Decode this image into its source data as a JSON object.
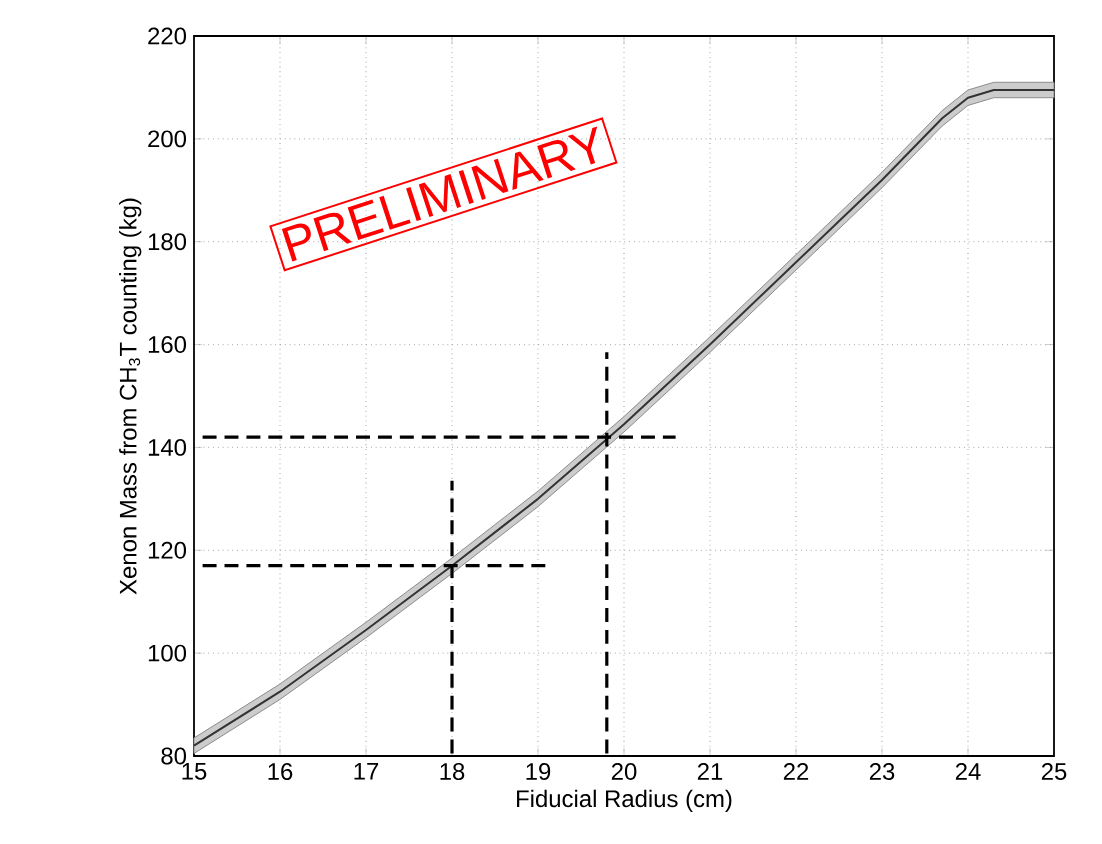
{
  "chart_data": {
    "type": "line",
    "xlabel": "Fiducial Radius (cm)",
    "ylabel": "Xenon Mass from CH$_{3}$T counting (kg)",
    "xlim": [
      15,
      25
    ],
    "ylim": [
      80,
      220
    ],
    "xticks": [
      15,
      16,
      17,
      18,
      19,
      20,
      21,
      22,
      23,
      24,
      25
    ],
    "yticks": [
      80,
      100,
      120,
      140,
      160,
      180,
      200,
      220
    ],
    "grid": true,
    "marker": "none",
    "annotations": [
      "PRELIMINARY"
    ],
    "series": [
      {
        "color": "#333333",
        "line_style": "solid",
        "x": [
          15,
          16,
          17,
          18,
          19,
          20,
          21,
          22,
          23,
          23.7,
          24,
          24.3,
          25
        ],
        "values": [
          82,
          92.5,
          104.5,
          117,
          130,
          144.5,
          160,
          176,
          192,
          204,
          208,
          209.5,
          209.5
        ],
        "lower": [
          80.5,
          91,
          103,
          115.5,
          128.5,
          143,
          158.5,
          174.5,
          190.5,
          202.5,
          206.5,
          208,
          208
        ],
        "upper": [
          83.5,
          94,
          106,
          118.5,
          131.5,
          146,
          161.5,
          177.5,
          193.5,
          205.5,
          209.5,
          211,
          211
        ]
      },
      {
        "color": "#000000",
        "line_style": "dashed",
        "x": [
          15.1,
          20.6
        ],
        "values": [
          142,
          142
        ]
      },
      {
        "color": "#000000",
        "line_style": "dashed",
        "x": [
          15.1,
          19.1
        ],
        "values": [
          117,
          117
        ]
      },
      {
        "color": "#000000",
        "line_style": "dashed",
        "x": [
          18,
          18
        ],
        "values": [
          80.5,
          133.5
        ]
      },
      {
        "color": "#000000",
        "line_style": "dashed",
        "x": [
          19.8,
          19.8
        ],
        "values": [
          80.5,
          158.5
        ]
      }
    ]
  }
}
